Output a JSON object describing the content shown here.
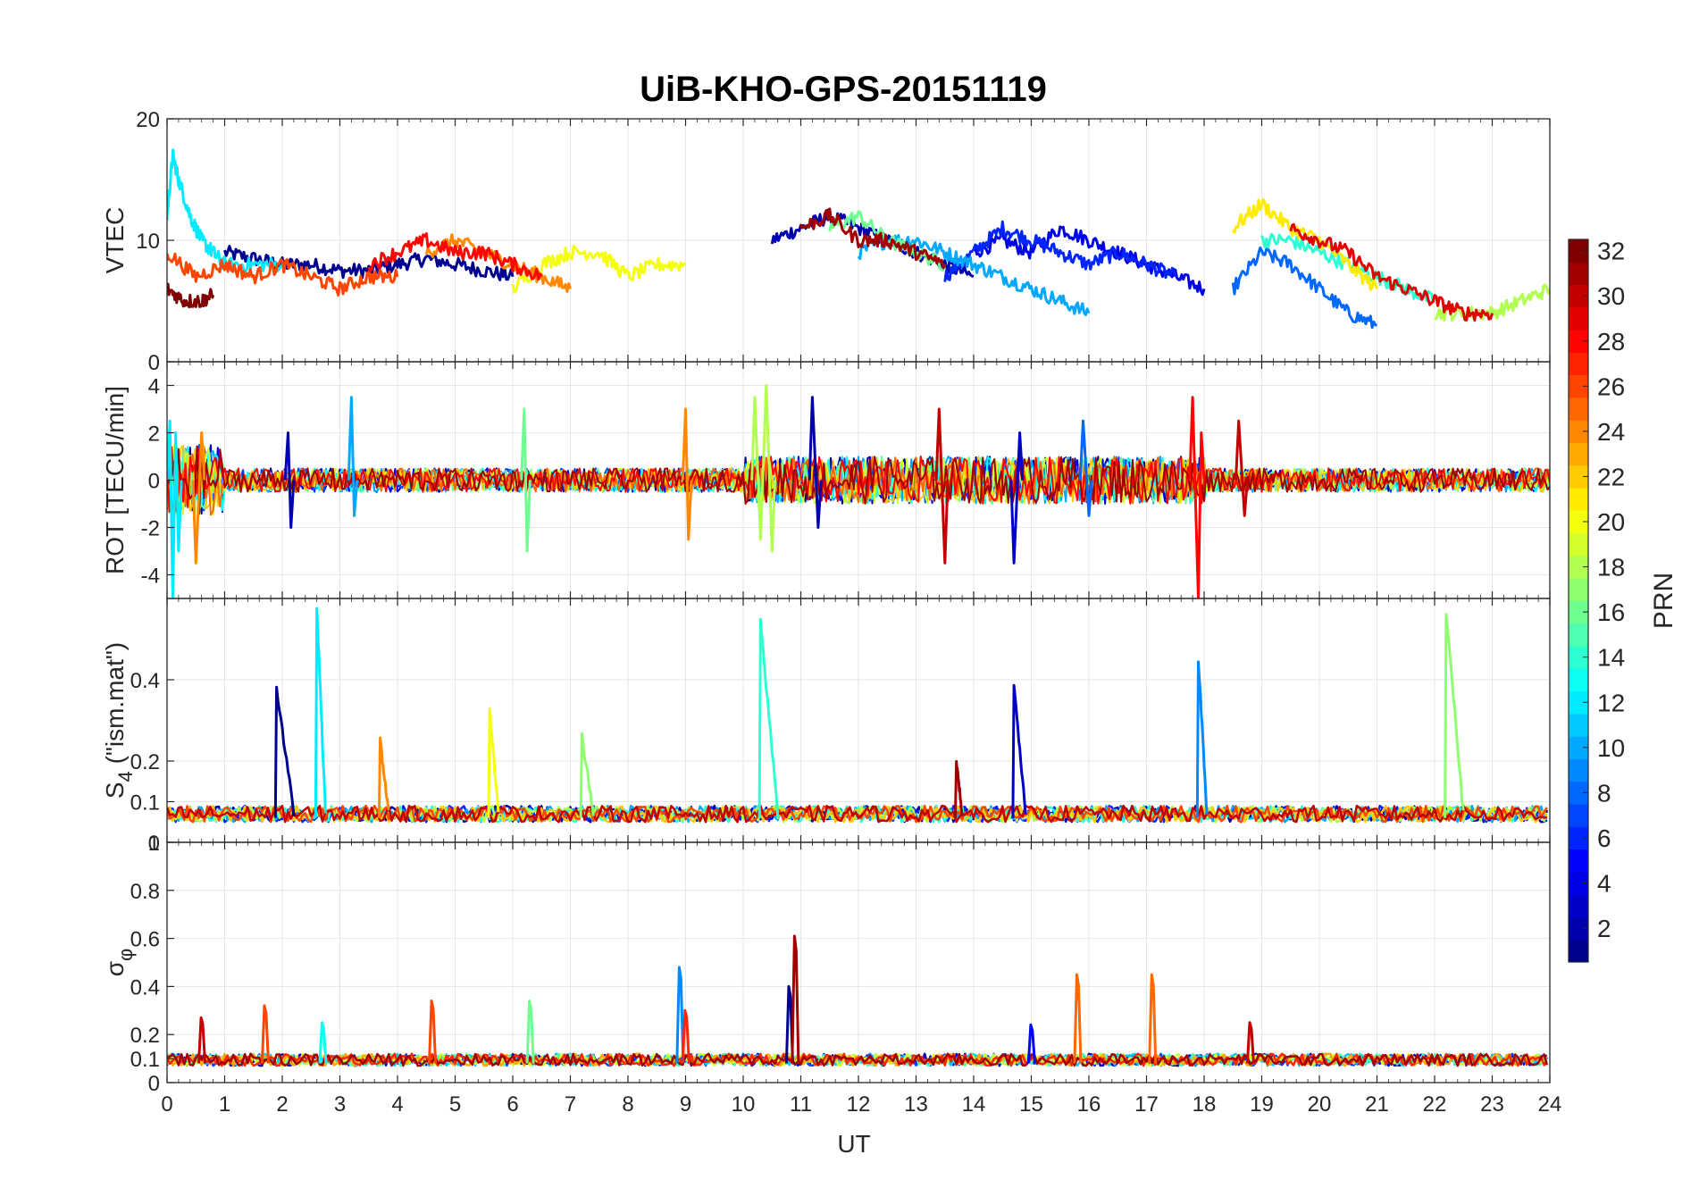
{
  "chart_data": {
    "type": "line",
    "title": "UiB-KHO-GPS-20151119",
    "xlabel": "UT",
    "x_ticks": [
      "0",
      "1",
      "2",
      "3",
      "4",
      "5",
      "6",
      "7",
      "8",
      "9",
      "10",
      "11",
      "12",
      "13",
      "14",
      "15",
      "16",
      "17",
      "18",
      "19",
      "20",
      "21",
      "22",
      "23",
      "24"
    ],
    "xlim": [
      0,
      24
    ],
    "grid": true,
    "series_note": "one line per GPS satellite (PRN 1-32), colored by PRN",
    "colorbar": {
      "label": "PRN",
      "range": [
        1,
        32
      ],
      "ticks": [
        "2",
        "4",
        "6",
        "8",
        "10",
        "12",
        "14",
        "16",
        "18",
        "20",
        "22",
        "24",
        "26",
        "28",
        "30",
        "32"
      ],
      "colormap": "jet",
      "colors": [
        "#00008f",
        "#0000ff",
        "#0080ff",
        "#00ffff",
        "#80ff80",
        "#ffff00",
        "#ff8000",
        "#ff0000",
        "#800000"
      ]
    },
    "panels": [
      {
        "name": "vtec",
        "ylabel": "VTEC",
        "ylim": [
          0,
          20
        ],
        "y_ticks": [
          "0",
          "10",
          "20"
        ],
        "series": [
          {
            "prn": 1,
            "x": [
              1.0,
              1.5,
              2.0,
              2.5,
              3.0,
              3.5,
              4.0,
              4.5,
              5.0,
              5.5,
              6.0
            ],
            "y": [
              9,
              8.5,
              8,
              8,
              7.5,
              7.5,
              8,
              8.5,
              8,
              7.5,
              7
            ]
          },
          {
            "prn": 2,
            "x": [
              10.5,
              11.0,
              11.5,
              12.0,
              12.5,
              13.0,
              13.5,
              14.0
            ],
            "y": [
              10,
              11,
              12,
              11,
              10,
              9,
              8,
              7
            ]
          },
          {
            "prn": 4,
            "x": [
              14.0,
              14.5,
              15.0,
              15.5,
              16.0,
              16.5,
              17.0,
              17.5,
              18.0
            ],
            "y": [
              9,
              10,
              9,
              11,
              10,
              9,
              8,
              7,
              6
            ]
          },
          {
            "prn": 6,
            "x": [
              13.5,
              14.0,
              14.5,
              15.0,
              15.5,
              16.0,
              16.5,
              17.0,
              17.5
            ],
            "y": [
              7,
              9,
              11,
              10,
              9,
              8,
              9,
              8,
              7
            ]
          },
          {
            "prn": 8,
            "x": [
              18.5,
              19.0,
              19.5,
              20.0,
              20.5,
              21.0
            ],
            "y": [
              6,
              9,
              8,
              6,
              4,
              3
            ]
          },
          {
            "prn": 10,
            "x": [
              12.0,
              12.5,
              13.0,
              13.5,
              14.0,
              14.5,
              15.0,
              15.5,
              16.0
            ],
            "y": [
              9,
              10,
              10,
              9,
              8,
              7,
              6,
              5,
              4
            ]
          },
          {
            "prn": 12,
            "x": [
              0.0,
              0.1,
              0.2,
              0.4,
              0.6,
              0.8,
              1.0,
              1.5,
              2.0
            ],
            "y": [
              12,
              17,
              15,
              12,
              10,
              9,
              8,
              8,
              8
            ]
          },
          {
            "prn": 14,
            "x": [
              19.0,
              19.5,
              20.0,
              20.5,
              21.0,
              21.5,
              22.0
            ],
            "y": [
              10,
              10,
              9,
              8,
              7,
              6,
              5
            ]
          },
          {
            "prn": 16,
            "x": [
              11.5,
              12.0,
              12.5,
              13.0,
              13.5
            ],
            "y": [
              11,
              12,
              10,
              9,
              8
            ]
          },
          {
            "prn": 18,
            "x": [
              22.0,
              22.5,
              23.0,
              23.5,
              24.0
            ],
            "y": [
              4,
              4,
              4,
              5,
              6
            ]
          },
          {
            "prn": 20,
            "x": [
              6.0,
              6.5,
              7.0,
              7.5,
              8.0,
              8.5,
              9.0
            ],
            "y": [
              6,
              8,
              9,
              9,
              7,
              8,
              8
            ]
          },
          {
            "prn": 21,
            "x": [
              18.5,
              19.0,
              19.5,
              20.0,
              20.5,
              21.0
            ],
            "y": [
              11,
              13,
              11,
              10,
              8,
              6
            ]
          },
          {
            "prn": 24,
            "x": [
              4.5,
              5.0,
              5.5,
              6.0,
              6.5,
              7.0
            ],
            "y": [
              9,
              10,
              9,
              8,
              7,
              6
            ]
          },
          {
            "prn": 26,
            "x": [
              0.0,
              0.5,
              1.0,
              1.5,
              2.0,
              2.5,
              3.0,
              3.5,
              4.0
            ],
            "y": [
              9,
              7,
              8,
              7,
              8,
              7,
              6,
              7,
              7
            ]
          },
          {
            "prn": 28,
            "x": [
              3.5,
              4.0,
              4.5,
              5.0,
              5.5,
              6.0,
              6.5
            ],
            "y": [
              8,
              9,
              10,
              9,
              9,
              8,
              7
            ]
          },
          {
            "prn": 29,
            "x": [
              19.5,
              20.0,
              20.5,
              21.0,
              21.5,
              22.0,
              22.5,
              23.0
            ],
            "y": [
              11,
              10,
              9,
              7,
              6,
              5,
              4,
              4
            ]
          },
          {
            "prn": 31,
            "x": [
              11.0,
              11.5,
              12.0,
              12.5,
              13.0,
              13.5
            ],
            "y": [
              11,
              12,
              10,
              10,
              9,
              8
            ]
          },
          {
            "prn": 32,
            "x": [
              0.0,
              0.3,
              0.6,
              0.8
            ],
            "y": [
              6,
              5,
              5,
              5.5
            ]
          }
        ]
      },
      {
        "name": "rot",
        "ylabel": "ROT [TECU/min]",
        "ylim": [
          -5,
          5
        ],
        "y_ticks": [
          "-4",
          "-2",
          "0",
          "2",
          "4"
        ],
        "spikes": [
          {
            "prn": 12,
            "x": [
              0.05,
              0.1,
              0.15,
              0.2
            ],
            "y": [
              2.5,
              -5,
              2,
              -3
            ]
          },
          {
            "prn": 24,
            "x": [
              0.5,
              0.6
            ],
            "y": [
              -3.5,
              2
            ]
          },
          {
            "prn": 2,
            "x": [
              2.1,
              2.15
            ],
            "y": [
              2,
              -2
            ]
          },
          {
            "prn": 10,
            "x": [
              3.2,
              3.25
            ],
            "y": [
              3.5,
              -1.5
            ]
          },
          {
            "prn": 16,
            "x": [
              6.2,
              6.25
            ],
            "y": [
              3,
              -3
            ]
          },
          {
            "prn": 24,
            "x": [
              9.0,
              9.05
            ],
            "y": [
              3,
              -2.5
            ]
          },
          {
            "prn": 18,
            "x": [
              10.2,
              10.3,
              10.4,
              10.5
            ],
            "y": [
              3.5,
              -2.5,
              4,
              -3
            ]
          },
          {
            "prn": 2,
            "x": [
              11.2,
              11.3
            ],
            "y": [
              3.5,
              -2
            ]
          },
          {
            "prn": 30,
            "x": [
              13.4,
              13.5
            ],
            "y": [
              3,
              -3.5
            ]
          },
          {
            "prn": 3,
            "x": [
              14.7,
              14.8
            ],
            "y": [
              -3.5,
              2
            ]
          },
          {
            "prn": 8,
            "x": [
              15.9,
              16.0
            ],
            "y": [
              2.5,
              -1.5
            ]
          },
          {
            "prn": 28,
            "x": [
              17.8,
              17.9,
              17.95
            ],
            "y": [
              3.5,
              -5,
              2
            ]
          },
          {
            "prn": 30,
            "x": [
              18.6,
              18.7
            ],
            "y": [
              2.5,
              -1.5
            ]
          }
        ]
      },
      {
        "name": "s4",
        "ylabel": "S4 (\"ism.mat\")",
        "ylabel_main": "S",
        "ylabel_sub": "4",
        "ylabel_rest": " (\"ism.mat\")",
        "ylim": [
          0,
          0.6
        ],
        "y_ticks": [
          "0",
          "0.1",
          "0.2",
          "0.4"
        ],
        "y_tick_values": [
          0,
          0.1,
          0.2,
          0.4
        ],
        "peaks": [
          {
            "prn": 1,
            "start": 1.9,
            "peak": 0.38,
            "end": 2.2
          },
          {
            "prn": 12,
            "start": 2.6,
            "peak": 0.58,
            "end": 2.75
          },
          {
            "prn": 24,
            "start": 3.7,
            "peak": 0.25,
            "end": 3.85
          },
          {
            "prn": 20,
            "start": 5.6,
            "peak": 0.33,
            "end": 5.75
          },
          {
            "prn": 17,
            "start": 7.2,
            "peak": 0.26,
            "end": 7.4
          },
          {
            "prn": 14,
            "start": 10.3,
            "peak": 0.54,
            "end": 10.6
          },
          {
            "prn": 31,
            "start": 13.7,
            "peak": 0.2,
            "end": 13.8
          },
          {
            "prn": 3,
            "start": 14.7,
            "peak": 0.38,
            "end": 14.9
          },
          {
            "prn": 9,
            "start": 17.9,
            "peak": 0.45,
            "end": 18.05
          },
          {
            "prn": 17,
            "start": 22.2,
            "peak": 0.57,
            "end": 22.5
          }
        ]
      },
      {
        "name": "sigma_phi",
        "ylabel": "σφ",
        "ylabel_main": "σ",
        "ylabel_sub": "φ",
        "ylim": [
          0,
          1
        ],
        "y_ticks": [
          "0",
          "0.1",
          "0.2",
          "0.4",
          "0.6",
          "0.8",
          "1"
        ],
        "y_tick_values": [
          0,
          0.1,
          0.2,
          0.4,
          0.6,
          0.8,
          1
        ],
        "spikes": [
          {
            "prn": 30,
            "x": 0.6,
            "y": 0.27
          },
          {
            "prn": 26,
            "x": 1.7,
            "y": 0.32
          },
          {
            "prn": 13,
            "x": 2.7,
            "y": 0.25
          },
          {
            "prn": 26,
            "x": 4.6,
            "y": 0.34
          },
          {
            "prn": 16,
            "x": 6.3,
            "y": 0.34
          },
          {
            "prn": 9,
            "x": 8.9,
            "y": 0.48
          },
          {
            "prn": 27,
            "x": 9.0,
            "y": 0.3
          },
          {
            "prn": 1,
            "x": 10.8,
            "y": 0.4
          },
          {
            "prn": 31,
            "x": 10.9,
            "y": 0.61
          },
          {
            "prn": 5,
            "x": 15.0,
            "y": 0.24
          },
          {
            "prn": 25,
            "x": 15.8,
            "y": 0.45
          },
          {
            "prn": 25,
            "x": 17.1,
            "y": 0.45
          },
          {
            "prn": 30,
            "x": 18.8,
            "y": 0.25
          }
        ]
      }
    ]
  }
}
